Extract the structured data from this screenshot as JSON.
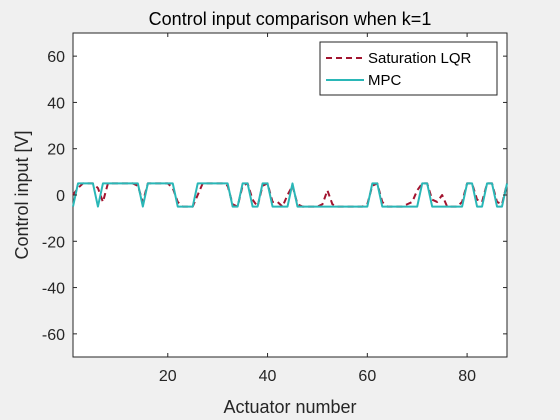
{
  "chart_data": {
    "type": "line",
    "title": "Control input comparison when k=1",
    "xlabel": "Actuator number",
    "ylabel": "Control input [V]",
    "xlim": [
      1,
      88
    ],
    "ylim": [
      -70,
      70
    ],
    "xticks": [
      20,
      40,
      60,
      80
    ],
    "yticks": [
      -60,
      -40,
      -20,
      0,
      20,
      40,
      60
    ],
    "legend_position": "top-right",
    "series": [
      {
        "name": "Saturation LQR",
        "color": "#a2142f",
        "dash": true,
        "x": [
          1,
          2,
          3,
          4,
          5,
          6,
          7,
          8,
          9,
          10,
          11,
          12,
          13,
          14,
          15,
          16,
          17,
          18,
          19,
          20,
          21,
          22,
          23,
          24,
          25,
          26,
          27,
          28,
          29,
          30,
          31,
          32,
          33,
          34,
          35,
          36,
          37,
          38,
          39,
          40,
          41,
          42,
          43,
          44,
          45,
          46,
          47,
          48,
          49,
          50,
          51,
          52,
          53,
          54,
          55,
          56,
          57,
          58,
          59,
          60,
          61,
          62,
          63,
          64,
          65,
          66,
          67,
          68,
          69,
          70,
          71,
          72,
          73,
          74,
          75,
          76,
          77,
          78,
          79,
          80,
          81,
          82,
          83,
          84,
          85,
          86,
          87,
          88
        ],
        "values": [
          0,
          3,
          5,
          5,
          5,
          3,
          -3,
          5,
          5,
          5,
          5,
          5,
          5,
          4,
          -3,
          5,
          5,
          5,
          5,
          5,
          3,
          -3,
          -5,
          -5,
          -5,
          0,
          5,
          5,
          5,
          5,
          5,
          4,
          -4,
          -5,
          4,
          5,
          -2,
          -5,
          4,
          5,
          -3,
          -3,
          -5,
          0,
          4,
          -4,
          -5,
          -5,
          -5,
          -5,
          -4,
          2,
          -4,
          -5,
          -5,
          -5,
          -5,
          -5,
          -5,
          -4,
          4,
          5,
          -3,
          -5,
          -5,
          -5,
          -5,
          -4,
          -3,
          2,
          5,
          5,
          -2,
          -3,
          0,
          -5,
          -5,
          -5,
          -3,
          5,
          5,
          -2,
          -3,
          5,
          5,
          -3,
          -4,
          5
        ]
      },
      {
        "name": "MPC",
        "color": "#2ab7b7",
        "dash": false,
        "x": [
          1,
          2,
          3,
          4,
          5,
          6,
          7,
          8,
          9,
          10,
          11,
          12,
          13,
          14,
          15,
          16,
          17,
          18,
          19,
          20,
          21,
          22,
          23,
          24,
          25,
          26,
          27,
          28,
          29,
          30,
          31,
          32,
          33,
          34,
          35,
          36,
          37,
          38,
          39,
          40,
          41,
          42,
          43,
          44,
          45,
          46,
          47,
          48,
          49,
          50,
          51,
          52,
          53,
          54,
          55,
          56,
          57,
          58,
          59,
          60,
          61,
          62,
          63,
          64,
          65,
          66,
          67,
          68,
          69,
          70,
          71,
          72,
          73,
          74,
          75,
          76,
          77,
          78,
          79,
          80,
          81,
          82,
          83,
          84,
          85,
          86,
          87,
          88
        ],
        "values": [
          -5,
          5,
          5,
          5,
          5,
          -5,
          5,
          5,
          5,
          5,
          5,
          5,
          5,
          5,
          -5,
          5,
          5,
          5,
          5,
          5,
          5,
          -5,
          -5,
          -5,
          -5,
          5,
          5,
          5,
          5,
          5,
          5,
          5,
          -5,
          -5,
          5,
          5,
          -5,
          -5,
          5,
          5,
          -5,
          -5,
          -5,
          -5,
          5,
          -5,
          -5,
          -5,
          -5,
          -5,
          -5,
          -5,
          -5,
          -5,
          -5,
          -5,
          -5,
          -5,
          -5,
          -5,
          5,
          5,
          -5,
          -5,
          -5,
          -5,
          -5,
          -5,
          -5,
          -5,
          5,
          5,
          -5,
          -5,
          -5,
          -5,
          -5,
          -5,
          -5,
          5,
          5,
          -5,
          -5,
          5,
          5,
          -5,
          -5,
          5
        ]
      }
    ]
  }
}
